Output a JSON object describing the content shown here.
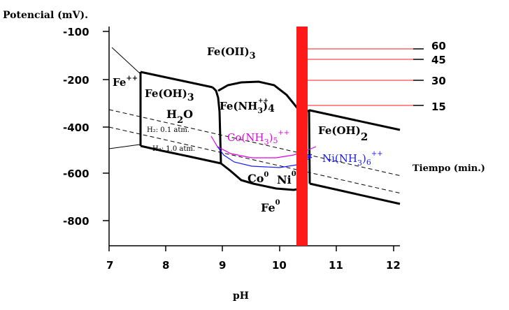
{
  "y_axis_title": "Potencial (mV).",
  "x_axis_title": "pH",
  "time_axis_title": "Tiempo (min.)",
  "y_ticks": [
    "-100",
    "-200",
    "-400",
    "-600",
    "-800"
  ],
  "x_ticks": [
    "7",
    "8",
    "9",
    "10",
    "11",
    "12"
  ],
  "time_ticks": [
    "60",
    "45",
    "30",
    "15"
  ],
  "species": {
    "fe_oh3_top": "Fe(OII)",
    "fe_oh3_top_sub": "3",
    "fe_pp": "Fe",
    "fe_pp_sup": "++",
    "fe_oh3_left": "Fe(OH)",
    "fe_oh3_left_sub": "3",
    "fe_nh3": "Fe(NH",
    "fe_nh3_sub": "3",
    "fe_nh3_end": ")",
    "fe_nh3_count": "4",
    "fe_nh3_sup": "++",
    "h2o_h": "H",
    "h2o_sub": "2",
    "h2o_o": "O",
    "h2_01": "H₂: 0.1 atm.",
    "h2_10": "H₂: 1.0 atm.",
    "co_nh3": "Co(NH",
    "co_nh3_sub": "3",
    "co_nh3_end": ")",
    "co_nh3_count": "5",
    "co_nh3_sup": "++",
    "ni_nh3": "Ni(NH",
    "ni_nh3_sub": "3",
    "ni_nh3_end": ")",
    "ni_nh3_count": "6",
    "ni_nh3_sup": "++",
    "fe_oh2": "Fe(OH)",
    "fe_oh2_sub": "2",
    "co0": "Co",
    "co0_sup": "0",
    "ni0": "Ni",
    "ni0_sup": "0",
    "fe0": "Fe",
    "fe0_sup": "0"
  },
  "colors": {
    "boundary": "#000000",
    "measurement_band": "#ff1a1a",
    "cobalt_complex": "#e100e1",
    "nickel_complex": "#1a1aff"
  }
}
